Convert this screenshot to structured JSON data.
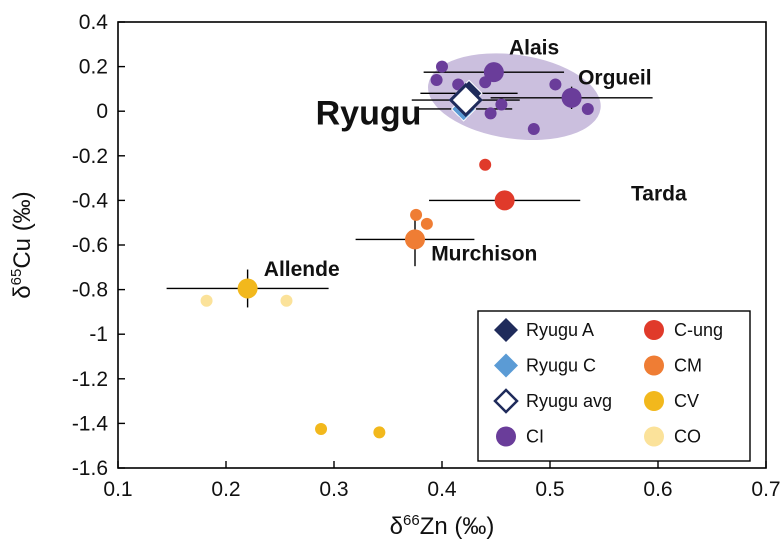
{
  "chart_data": {
    "type": "scatter",
    "xlabel": "δ66Zn (‰)",
    "ylabel": "δ65Cu (‰)",
    "xlim": [
      0.1,
      0.7
    ],
    "ylim": [
      -1.6,
      0.4
    ],
    "x_ticks": [
      "0.1",
      "0.2",
      "0.3",
      "0.4",
      "0.5",
      "0.6",
      "0.7"
    ],
    "y_ticks": [
      "0.4",
      "0.2",
      "0",
      "-0.2",
      "-0.4",
      "-0.6",
      "-0.8",
      "-1",
      "-1.2",
      "-1.4",
      "-1.6"
    ],
    "grid": false,
    "legend_position": "bottom-right",
    "ci_field_color": "#b9a9d3",
    "series": [
      {
        "name": "Ryugu A",
        "marker": "diamond",
        "color": "#1f2b5b",
        "points": [
          {
            "x": 0.425,
            "y": 0.08,
            "xerr": 0.045,
            "yerr": 0.05,
            "size": 13
          }
        ]
      },
      {
        "name": "Ryugu C",
        "marker": "diamond",
        "color": "#5b9bd5",
        "points": [
          {
            "x": 0.42,
            "y": 0.01,
            "xerr": 0.045,
            "yerr": 0.05,
            "size": 12
          }
        ]
      },
      {
        "name": "Ryugu avg",
        "marker": "diamond-open",
        "color": "#1f2b5b",
        "points": [
          {
            "x": 0.422,
            "y": 0.05,
            "xerr": 0.05,
            "yerr": 0.06,
            "size": 15
          }
        ]
      },
      {
        "name": "CI",
        "marker": "circle",
        "color": "#6a3d9a",
        "points": [
          {
            "x": 0.4,
            "y": 0.2,
            "size": 6
          },
          {
            "x": 0.395,
            "y": 0.14,
            "size": 6
          },
          {
            "x": 0.415,
            "y": 0.12,
            "size": 6
          },
          {
            "x": 0.44,
            "y": 0.13,
            "size": 6
          },
          {
            "x": 0.455,
            "y": 0.03,
            "size": 6
          },
          {
            "x": 0.445,
            "y": -0.01,
            "size": 6
          },
          {
            "x": 0.485,
            "y": -0.08,
            "size": 6
          },
          {
            "x": 0.505,
            "y": 0.12,
            "size": 6
          },
          {
            "x": 0.535,
            "y": 0.01,
            "size": 6
          },
          {
            "x": 0.42,
            "y": -0.01,
            "size": 6
          },
          {
            "x": 0.448,
            "y": 0.175,
            "xerr": 0.065,
            "yerr": 0.035,
            "size": 10
          },
          {
            "x": 0.52,
            "y": 0.06,
            "xerr": 0.075,
            "yerr": 0.05,
            "size": 10
          }
        ]
      },
      {
        "name": "C-ung",
        "marker": "circle",
        "color": "#e03a2a",
        "points": [
          {
            "x": 0.44,
            "y": -0.24,
            "size": 6
          },
          {
            "x": 0.458,
            "y": -0.4,
            "xerr": 0.07,
            "yerr": 0.0,
            "size": 10
          }
        ]
      },
      {
        "name": "CM",
        "marker": "circle",
        "color": "#ef7d34",
        "points": [
          {
            "x": 0.376,
            "y": -0.465,
            "size": 6
          },
          {
            "x": 0.386,
            "y": -0.505,
            "size": 6
          },
          {
            "x": 0.375,
            "y": -0.575,
            "xerr": 0.055,
            "yerr": 0.12,
            "size": 10
          }
        ]
      },
      {
        "name": "CV",
        "marker": "circle",
        "color": "#f2b81c",
        "points": [
          {
            "x": 0.22,
            "y": -0.795,
            "xerr": 0.075,
            "yerr": 0.085,
            "size": 10
          },
          {
            "x": 0.288,
            "y": -1.425,
            "size": 6
          },
          {
            "x": 0.342,
            "y": -1.44,
            "size": 6
          }
        ]
      },
      {
        "name": "CO",
        "marker": "circle",
        "color": "#fbe29a",
        "points": [
          {
            "x": 0.182,
            "y": -0.85,
            "size": 6
          },
          {
            "x": 0.256,
            "y": -0.85,
            "size": 6
          }
        ]
      }
    ],
    "annotations": [
      {
        "text": "Alais",
        "x": 0.462,
        "y": 0.255,
        "size": 21
      },
      {
        "text": "Orgueil",
        "x": 0.526,
        "y": 0.12,
        "size": 21
      },
      {
        "text": "Ryugu",
        "x": 0.283,
        "y": -0.06,
        "size": 34
      },
      {
        "text": "Tarda",
        "x": 0.575,
        "y": -0.4,
        "size": 21
      },
      {
        "text": "Murchison",
        "x": 0.39,
        "y": -0.67,
        "size": 21
      },
      {
        "text": "Allende",
        "x": 0.235,
        "y": -0.74,
        "size": 21
      }
    ]
  }
}
